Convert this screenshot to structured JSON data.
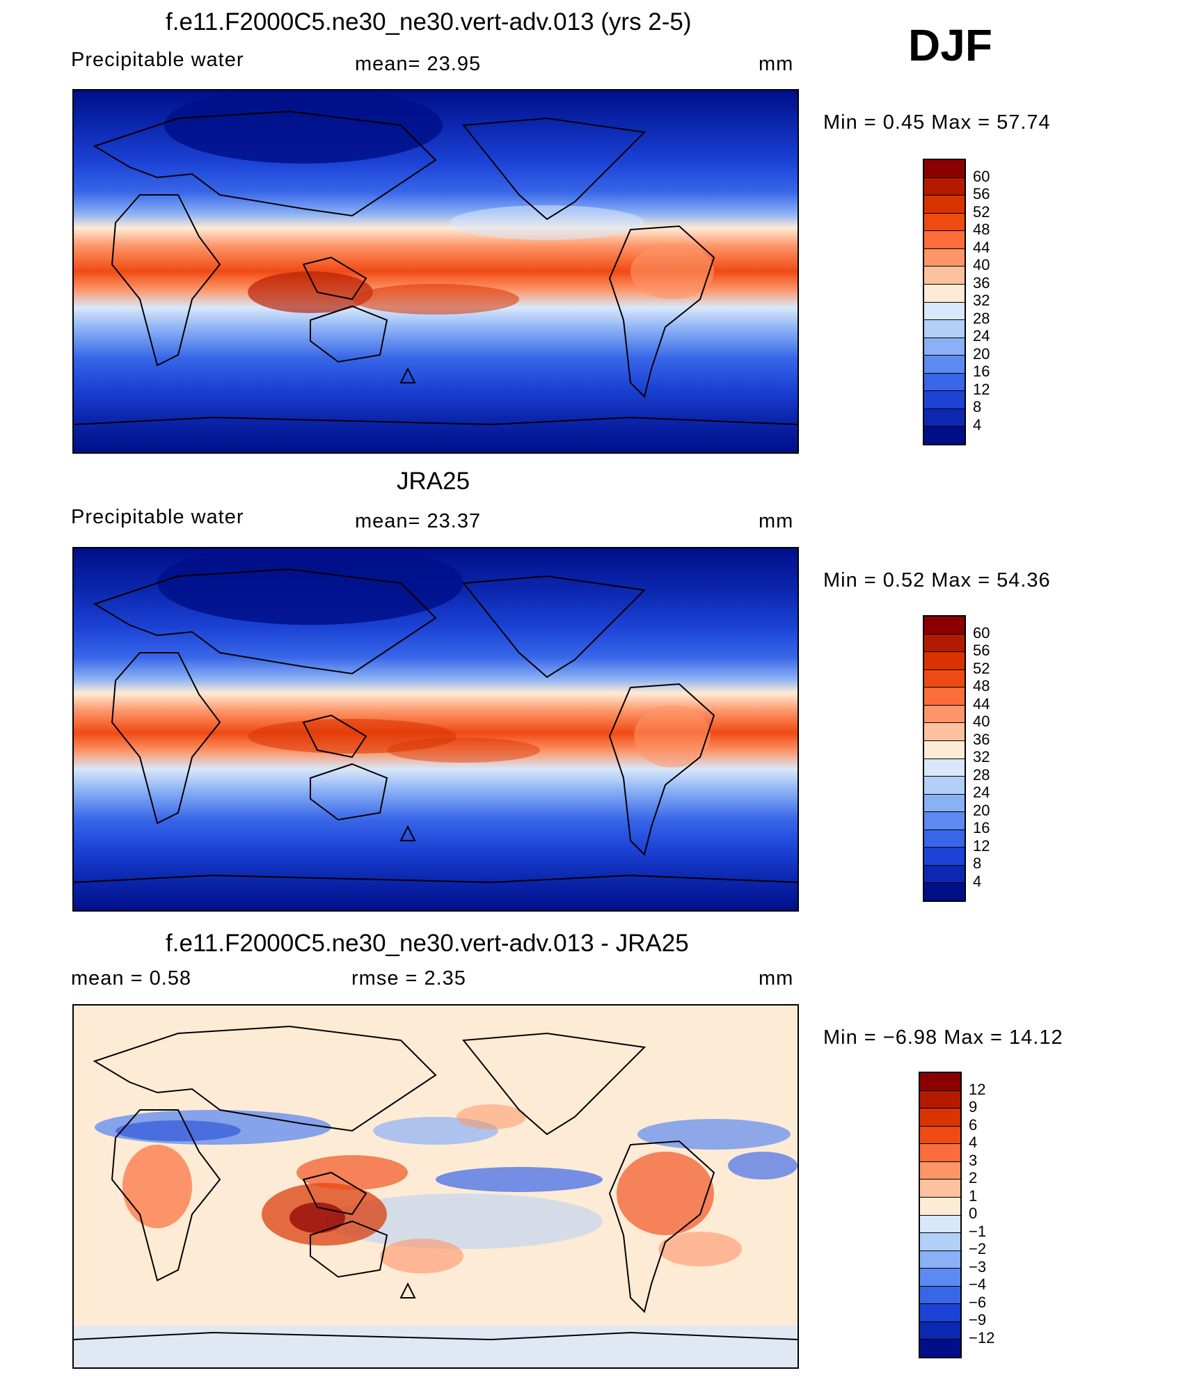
{
  "season": "DJF",
  "panels": [
    {
      "title": "f.e11.F2000C5.ne30_ne30.vert-adv.013 (yrs 2-5)",
      "left_label": "Precipitable  water",
      "center_label": "mean=   23.95",
      "units": "mm",
      "minmax": "Min  =     0.45  Max  =    57.74",
      "colorbar_labels": [
        "60",
        "56",
        "52",
        "48",
        "44",
        "40",
        "36",
        "32",
        "28",
        "24",
        "20",
        "16",
        "12",
        "8",
        "4"
      ],
      "colorbar_colors": [
        "#8b0000",
        "#b41a00",
        "#d93300",
        "#f04a14",
        "#fb6d3a",
        "#fd9568",
        "#fec19d",
        "#feebd6",
        "#d8e8fa",
        "#b2cff8",
        "#8ab0f5",
        "#5c8af0",
        "#3866e8",
        "#1c43d6",
        "#0c28b0",
        "#000f88"
      ]
    },
    {
      "title": "JRA25",
      "left_label": "Precipitable  water",
      "center_label": "mean=   23.37",
      "units": "mm",
      "minmax": "Min  =     0.52  Max  =    54.36",
      "colorbar_labels": [
        "60",
        "56",
        "52",
        "48",
        "44",
        "40",
        "36",
        "32",
        "28",
        "24",
        "20",
        "16",
        "12",
        "8",
        "4"
      ],
      "colorbar_colors": [
        "#8b0000",
        "#b41a00",
        "#d93300",
        "#f04a14",
        "#fb6d3a",
        "#fd9568",
        "#fec19d",
        "#feebd6",
        "#d8e8fa",
        "#b2cff8",
        "#8ab0f5",
        "#5c8af0",
        "#3866e8",
        "#1c43d6",
        "#0c28b0",
        "#000f88"
      ]
    },
    {
      "title": "f.e11.F2000C5.ne30_ne30.vert-adv.013 - JRA25",
      "left_label": "mean  =     0.58",
      "center_label": "rmse  =     2.35",
      "units": "mm",
      "minmax": "Min  =    −6.98  Max  =    14.12",
      "colorbar_labels": [
        "12",
        "9",
        "6",
        "4",
        "3",
        "2",
        "1",
        "0",
        "−1",
        "−2",
        "−3",
        "−4",
        "−6",
        "−9",
        "−12"
      ],
      "colorbar_colors": [
        "#8b0000",
        "#b41a00",
        "#d93300",
        "#f04a14",
        "#fb6d3a",
        "#fd9568",
        "#fec19d",
        "#feebd6",
        "#d8e8fa",
        "#b2cff8",
        "#8ab0f5",
        "#5c8af0",
        "#3866e8",
        "#1c43d6",
        "#0c28b0",
        "#000f88"
      ]
    }
  ],
  "colors": {
    "diff_background": "#feebd6"
  }
}
